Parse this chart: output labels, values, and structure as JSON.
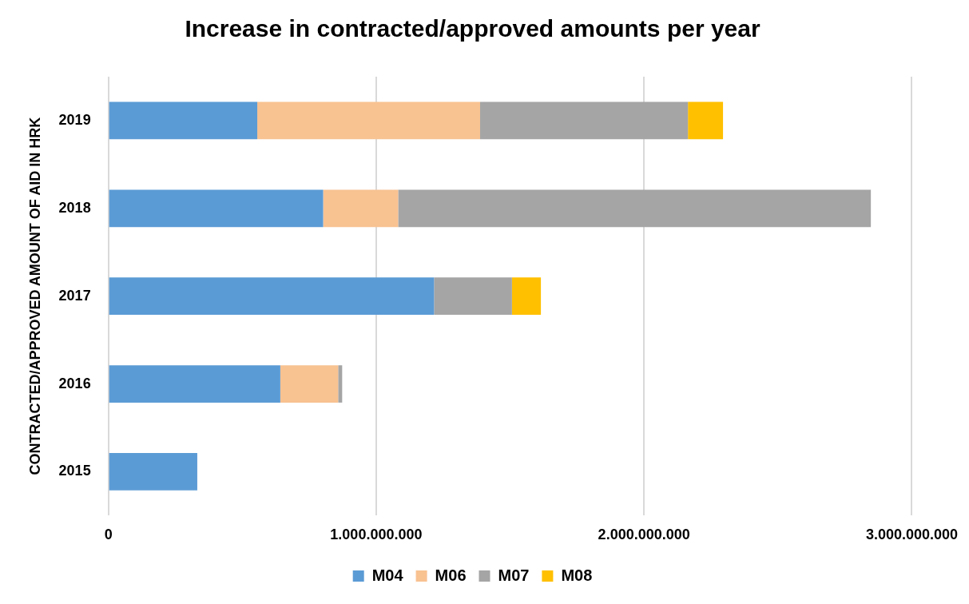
{
  "chart_data": {
    "type": "bar",
    "orientation": "horizontal",
    "stacked": true,
    "title": "Increase in contracted/approved amounts per year",
    "ylabel": "CONTRACTED/APPROVED AMOUNT OF AID IN HRK",
    "categories": [
      "2019",
      "2018",
      "2017",
      "2016",
      "2015"
    ],
    "series": [
      {
        "name": "M04",
        "color": "#5b9bd5",
        "values": [
          556000000,
          802000000,
          1216000000,
          642000000,
          332000000
        ]
      },
      {
        "name": "M06",
        "color": "#f8c291",
        "values": [
          832000000,
          280000000,
          null,
          216000000,
          null
        ]
      },
      {
        "name": "M07",
        "color": "#a5a5a5",
        "values": [
          776000000,
          1765000000,
          291000000,
          15000000,
          null
        ]
      },
      {
        "name": "M08",
        "color": "#ffc000",
        "values": [
          131000000,
          null,
          108000000,
          null,
          null
        ]
      }
    ],
    "xlim": [
      0,
      3000000000
    ],
    "xticks": [
      0,
      {
        "value": 1000000000,
        "label": "1.000.000.000"
      },
      {
        "value": 2000000000,
        "label": "2.000.000.000"
      },
      {
        "value": 3000000000,
        "label": "3.000.000.000"
      }
    ],
    "grid": "x",
    "legend": "bottom"
  }
}
